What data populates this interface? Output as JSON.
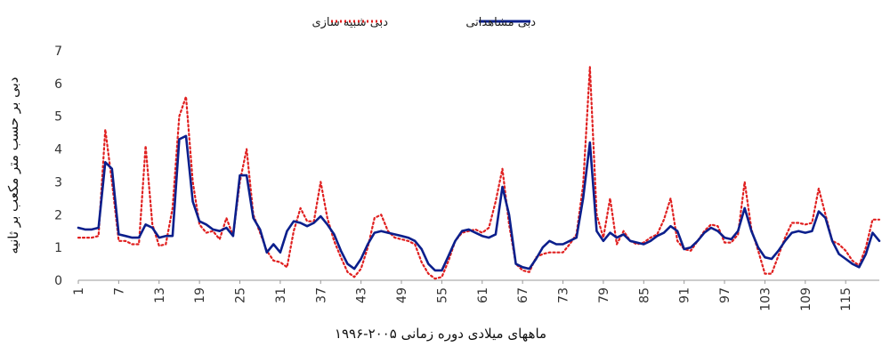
{
  "chart_data": {
    "type": "line",
    "title": "",
    "xlabel": "ماههای میلادی دوره زمانی ۲۰۰۵-۱۹۹۶",
    "ylabel": "دبی بر حسب متر مکعب بر ثانیه",
    "ylim": [
      0,
      7
    ],
    "yticks": [
      "0",
      "1",
      "2",
      "3",
      "4",
      "5",
      "6",
      "7"
    ],
    "x_tick_labels": [
      "1",
      "7",
      "13",
      "19",
      "25",
      "31",
      "37",
      "43",
      "49",
      "55",
      "61",
      "67",
      "73",
      "79",
      "85",
      "91",
      "97",
      "103",
      "109",
      "115"
    ],
    "x_tick_values": [
      1,
      7,
      13,
      19,
      25,
      31,
      37,
      43,
      49,
      55,
      61,
      67,
      73,
      79,
      85,
      91,
      97,
      103,
      109,
      115
    ],
    "xlim": [
      1,
      120
    ],
    "grid": false,
    "legend_placement": "top-center",
    "colors": {
      "observed": "#0b1f8c",
      "simulated": "#e02020"
    },
    "series": [
      {
        "name": "دبی مشاهداتی",
        "style": "solid",
        "x": [
          1,
          2,
          3,
          4,
          5,
          6,
          7,
          8,
          9,
          10,
          11,
          12,
          13,
          14,
          15,
          16,
          17,
          18,
          19,
          20,
          21,
          22,
          23,
          24,
          25,
          26,
          27,
          28,
          29,
          30,
          31,
          32,
          33,
          34,
          35,
          36,
          37,
          38,
          39,
          40,
          41,
          42,
          43,
          44,
          45,
          46,
          47,
          48,
          49,
          50,
          51,
          52,
          53,
          54,
          55,
          56,
          57,
          58,
          59,
          60,
          61,
          62,
          63,
          64,
          65,
          66,
          67,
          68,
          69,
          70,
          71,
          72,
          73,
          74,
          75,
          76,
          77,
          78,
          79,
          80,
          81,
          82,
          83,
          84,
          85,
          86,
          87,
          88,
          89,
          90,
          91,
          92,
          93,
          94,
          95,
          96,
          97,
          98,
          99,
          100,
          101,
          102,
          103,
          104,
          105,
          106,
          107,
          108,
          109,
          110,
          111,
          112,
          113,
          114,
          115,
          116,
          117,
          118,
          119,
          120
        ],
        "values": [
          1.6,
          1.55,
          1.55,
          1.6,
          3.6,
          3.4,
          1.4,
          1.35,
          1.3,
          1.3,
          1.7,
          1.6,
          1.3,
          1.35,
          1.35,
          4.3,
          4.4,
          2.4,
          1.8,
          1.7,
          1.55,
          1.5,
          1.6,
          1.35,
          3.2,
          3.2,
          1.9,
          1.55,
          0.85,
          1.1,
          0.85,
          1.5,
          1.8,
          1.75,
          1.65,
          1.75,
          1.95,
          1.7,
          1.4,
          0.9,
          0.5,
          0.35,
          0.65,
          1.1,
          1.45,
          1.5,
          1.45,
          1.4,
          1.35,
          1.3,
          1.2,
          0.95,
          0.5,
          0.3,
          0.3,
          0.75,
          1.2,
          1.5,
          1.55,
          1.45,
          1.35,
          1.3,
          1.4,
          2.85,
          2.0,
          0.5,
          0.4,
          0.35,
          0.65,
          1.0,
          1.2,
          1.1,
          1.1,
          1.2,
          1.3,
          2.5,
          4.2,
          1.5,
          1.2,
          1.45,
          1.3,
          1.4,
          1.2,
          1.15,
          1.1,
          1.2,
          1.35,
          1.45,
          1.65,
          1.5,
          0.95,
          1.0,
          1.2,
          1.45,
          1.6,
          1.5,
          1.3,
          1.25,
          1.5,
          2.2,
          1.5,
          1.0,
          0.7,
          0.65,
          0.9,
          1.2,
          1.45,
          1.5,
          1.45,
          1.5,
          2.1,
          1.9,
          1.2,
          0.8,
          0.65,
          0.5,
          0.4,
          0.8,
          1.45,
          1.2
        ]
      },
      {
        "name": "دبی شبیه سازی",
        "style": "dotted",
        "x": [
          1,
          2,
          3,
          4,
          5,
          6,
          7,
          8,
          9,
          10,
          11,
          12,
          13,
          14,
          15,
          16,
          17,
          18,
          19,
          20,
          21,
          22,
          23,
          24,
          25,
          26,
          27,
          28,
          29,
          30,
          31,
          32,
          33,
          34,
          35,
          36,
          37,
          38,
          39,
          40,
          41,
          42,
          43,
          44,
          45,
          46,
          47,
          48,
          49,
          50,
          51,
          52,
          53,
          54,
          55,
          56,
          57,
          58,
          59,
          60,
          61,
          62,
          63,
          64,
          65,
          66,
          67,
          68,
          69,
          70,
          71,
          72,
          73,
          74,
          75,
          76,
          77,
          78,
          79,
          80,
          81,
          82,
          83,
          84,
          85,
          86,
          87,
          88,
          89,
          90,
          91,
          92,
          93,
          94,
          95,
          96,
          97,
          98,
          99,
          100,
          101,
          102,
          103,
          104,
          105,
          106,
          107,
          108,
          109,
          110,
          111,
          112,
          113,
          114,
          115,
          116,
          117,
          118,
          119,
          120
        ],
        "values": [
          1.3,
          1.3,
          1.3,
          1.35,
          4.6,
          3.0,
          1.2,
          1.2,
          1.1,
          1.1,
          4.1,
          1.7,
          1.05,
          1.1,
          2.2,
          5.0,
          5.6,
          3.0,
          1.7,
          1.45,
          1.5,
          1.25,
          1.9,
          1.35,
          3.0,
          4.0,
          2.0,
          1.45,
          0.9,
          0.6,
          0.55,
          0.4,
          1.5,
          2.2,
          1.8,
          1.8,
          3.0,
          1.9,
          1.2,
          0.7,
          0.25,
          0.1,
          0.35,
          1.0,
          1.9,
          2.0,
          1.5,
          1.3,
          1.25,
          1.2,
          1.1,
          0.55,
          0.2,
          0.05,
          0.1,
          0.6,
          1.2,
          1.45,
          1.5,
          1.55,
          1.45,
          1.6,
          2.4,
          3.4,
          1.7,
          0.5,
          0.3,
          0.25,
          0.7,
          0.8,
          0.85,
          0.85,
          0.85,
          1.1,
          1.4,
          2.9,
          6.5,
          2.0,
          1.3,
          2.5,
          1.1,
          1.5,
          1.2,
          1.1,
          1.15,
          1.3,
          1.4,
          1.85,
          2.5,
          1.2,
          0.95,
          0.9,
          1.2,
          1.5,
          1.7,
          1.65,
          1.15,
          1.15,
          1.4,
          3.0,
          1.55,
          0.9,
          0.2,
          0.2,
          0.75,
          1.3,
          1.75,
          1.75,
          1.7,
          1.75,
          2.8,
          2.0,
          1.2,
          1.1,
          0.9,
          0.6,
          0.45,
          1.0,
          1.85,
          1.85
        ]
      }
    ]
  }
}
